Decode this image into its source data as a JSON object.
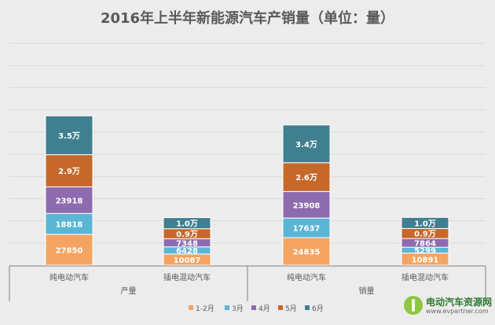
{
  "chart_data": {
    "type": "bar",
    "stacked": true,
    "title": "2016年上半年新能源汽车产销量（单位：量）",
    "groups": [
      {
        "label": "产量",
        "categories": [
          "纯电动汽车",
          "插电混动汽车"
        ]
      },
      {
        "label": "销量",
        "categories": [
          "纯电动汽车",
          "插电混动汽车"
        ]
      }
    ],
    "series": [
      {
        "name": "1-2月",
        "color": "#f4a460",
        "values": [
          27850,
          10087,
          24835,
          10891
        ],
        "labels": [
          "27850",
          "10087",
          "24835",
          "10891"
        ]
      },
      {
        "name": "3月",
        "color": "#5bb5d5",
        "values": [
          18818,
          6428,
          17637,
          5299
        ],
        "labels": [
          "18818",
          "6428",
          "17637",
          "5299"
        ]
      },
      {
        "name": "4月",
        "color": "#8e6bb0",
        "values": [
          23918,
          7348,
          23908,
          7864
        ],
        "labels": [
          "23918",
          "7348",
          "23908",
          "7864"
        ]
      },
      {
        "name": "5月",
        "color": "#c5682a",
        "values": [
          29000,
          9000,
          26000,
          9000
        ],
        "labels": [
          "2.9万",
          "0.9万",
          "2.6万",
          "0.9万"
        ]
      },
      {
        "name": "6月",
        "color": "#3f7f8f",
        "values": [
          35000,
          10000,
          34000,
          10000
        ],
        "labels": [
          "3.5万",
          "1.0万",
          "3.4万",
          "1.0万"
        ]
      }
    ],
    "legend_position": "bottom",
    "grid": true
  },
  "watermark": {
    "name": "电动汽车资源网",
    "url": "www.evpartner.com"
  }
}
